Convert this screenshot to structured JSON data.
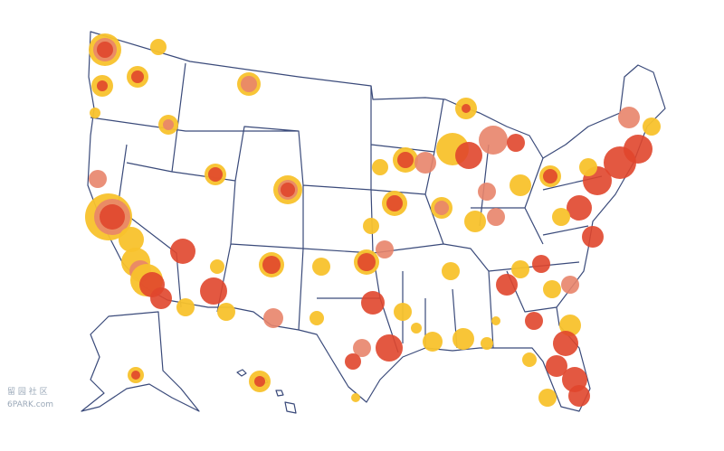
{
  "watermark": {
    "line1": "留 园 社 区",
    "line2": "6PARK.com"
  }
}
